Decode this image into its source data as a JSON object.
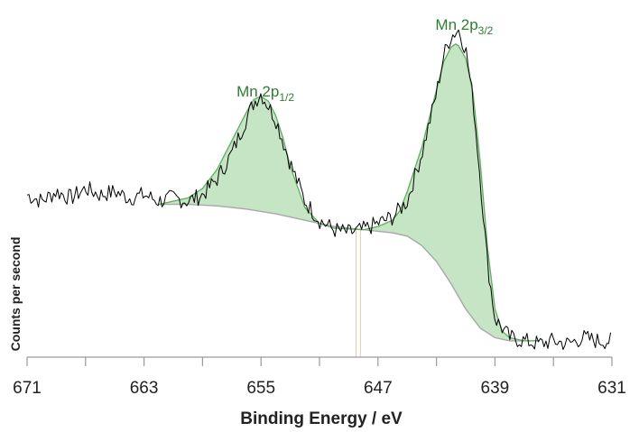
{
  "chart_data": {
    "type": "line",
    "title": "",
    "xlabel": "Binding Energy / eV",
    "ylabel": "Counts per second",
    "x_reversed": true,
    "xlim": [
      671,
      631
    ],
    "ylim": [
      0,
      100
    ],
    "x_ticks": [
      671,
      663,
      655,
      647,
      639,
      631
    ],
    "x_tick_labels": [
      "671",
      "663",
      "655",
      "647",
      "639",
      "631"
    ],
    "grid": false,
    "legend": "none",
    "colors": {
      "raw": "#000000",
      "fill": "#c6e5c4",
      "envelope": "#5fae5f",
      "background": "#a8a8a8",
      "label": "#2e7d32",
      "marker": "#d8cfb0"
    },
    "annotations": [
      {
        "name": "mn-2p12-label",
        "text_main": "Mn 2p",
        "text_sub": "1/2",
        "x": 654.7,
        "y": 81
      },
      {
        "name": "mn-2p32-label",
        "text_main": "Mn 2p",
        "text_sub": "3/2",
        "x": 641.1,
        "y": 102
      }
    ],
    "markers": [
      648.5,
      648.2
    ],
    "series": [
      {
        "type": "background",
        "x": [
          662.0,
          660.0,
          658.0,
          656.0,
          654.0,
          652.0,
          650.0,
          648.0,
          646.0,
          645.0,
          644.0,
          643.0,
          642.0,
          641.0,
          640.0,
          639.0,
          638.0,
          637.0,
          636.0
        ],
        "y": [
          47,
          47,
          46.5,
          45.5,
          44,
          42,
          40,
          39,
          38,
          37,
          34,
          29,
          22,
          14,
          8,
          5,
          4,
          4,
          4
        ]
      },
      {
        "type": "envelope",
        "x": [
          662.0,
          660.0,
          659.0,
          658.0,
          657.0,
          656.0,
          655.5,
          655.0,
          654.5,
          654.0,
          653.5,
          653.0,
          652.0,
          651.0,
          650.0,
          648.0,
          647.0,
          646.0,
          645.5,
          645.0,
          644.0,
          643.0,
          642.5,
          642.0,
          641.7,
          641.5,
          641.0,
          640.5,
          640.0,
          639.5,
          639.0,
          638.5,
          638.0,
          637.0,
          636.0
        ],
        "y": [
          47,
          49,
          52,
          58,
          67,
          76,
          80,
          81,
          79.5,
          75,
          68,
          59,
          46,
          41,
          39.5,
          39,
          40,
          42,
          45,
          51,
          65,
          83,
          92,
          96.5,
          97.5,
          97,
          93,
          82,
          60,
          33,
          14,
          7,
          5,
          4,
          4
        ]
      },
      {
        "type": "raw",
        "x": [
          671.0,
          670.0,
          669.0,
          668.0,
          667.0,
          666.0,
          665.0,
          664.0,
          663.0,
          662.0,
          661.0,
          660.0,
          659.0,
          658.0,
          657.0,
          656.0,
          655.5,
          655.0,
          654.5,
          654.0,
          653.0,
          652.0,
          651.0,
          650.0,
          649.0,
          648.0,
          647.0,
          646.0,
          645.0,
          644.0,
          643.0,
          642.5,
          642.0,
          641.5,
          641.0,
          640.5,
          640.0,
          639.5,
          639.0,
          638.0,
          637.0,
          636.0,
          635.0,
          634.0,
          633.0,
          632.0,
          631.0
        ],
        "y": [
          50,
          48,
          51,
          49,
          52,
          50,
          51,
          49,
          50,
          48,
          49,
          48,
          50,
          55,
          63,
          74,
          79,
          82,
          78,
          74,
          60,
          48,
          42,
          39,
          38,
          39,
          41,
          43,
          48,
          63,
          82,
          94,
          100,
          102,
          96,
          80,
          55,
          28,
          11,
          5,
          4,
          3,
          4,
          3,
          5,
          4,
          4
        ]
      }
    ]
  }
}
